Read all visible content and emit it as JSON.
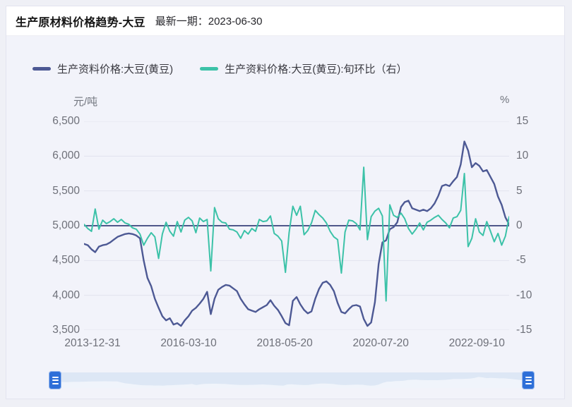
{
  "header": {
    "title": "生产原材料价格趋势-大豆",
    "latest_label": "最新一期：",
    "latest_date": "2023-06-30"
  },
  "legend": [
    {
      "label": "生产资料价格:大豆(黄豆)",
      "color": "#4d5994"
    },
    {
      "label": "生产资料价格:大豆(黄豆):旬环比（右）",
      "color": "#3cc2a8"
    }
  ],
  "colors": {
    "price_line": "#4d5994",
    "pct_line": "#3cc2a8",
    "zero_line": "#4f578a",
    "grid_line": "#e2e3ee",
    "slider_handle": "#2e6fd8",
    "slider_track": "#dde7f5"
  },
  "chart_data": {
    "type": "line",
    "title": "生产原材料价格趋势-大豆",
    "left_axis": {
      "unit": "元/吨",
      "min": 3500,
      "max": 6500,
      "ticks": [
        "6,500",
        "6,000",
        "5,500",
        "5,000",
        "4,500",
        "4,000",
        "3,500"
      ]
    },
    "right_axis": {
      "unit": "%",
      "min": -15,
      "max": 15,
      "ticks": [
        "15",
        "10",
        "5",
        "0",
        "-5",
        "-10",
        "-15"
      ]
    },
    "x_ticks": {
      "labels": [
        "2013-12-31",
        "2016-03-10",
        "2018-05-20",
        "2020-07-20",
        "2022-09-10"
      ],
      "positions": [
        0.02,
        0.246,
        0.472,
        0.698,
        0.924
      ]
    },
    "grid": true,
    "legend_position": "top",
    "zero_reference_left_value": 5000,
    "categories": [
      "2013-12",
      "2014-01",
      "2014-02",
      "2014-03",
      "2014-04",
      "2014-05",
      "2014-06",
      "2014-07",
      "2014-08",
      "2014-09",
      "2014-10",
      "2014-11",
      "2014-12",
      "2015-01",
      "2015-02",
      "2015-03",
      "2015-04",
      "2015-05",
      "2015-06",
      "2015-07",
      "2015-08",
      "2015-09",
      "2015-10",
      "2015-11",
      "2015-12",
      "2016-01",
      "2016-02",
      "2016-03",
      "2016-04",
      "2016-05",
      "2016-06",
      "2016-07",
      "2016-08",
      "2016-09",
      "2016-10",
      "2016-11",
      "2016-12",
      "2017-01",
      "2017-02",
      "2017-03",
      "2017-04",
      "2017-05",
      "2017-06",
      "2017-07",
      "2017-08",
      "2017-09",
      "2017-10",
      "2017-11",
      "2017-12",
      "2018-01",
      "2018-02",
      "2018-03",
      "2018-04",
      "2018-05",
      "2018-06",
      "2018-07",
      "2018-08",
      "2018-09",
      "2018-10",
      "2018-11",
      "2018-12",
      "2019-01",
      "2019-02",
      "2019-03",
      "2019-04",
      "2019-05",
      "2019-06",
      "2019-07",
      "2019-08",
      "2019-09",
      "2019-10",
      "2019-11",
      "2019-12",
      "2020-01",
      "2020-02",
      "2020-03",
      "2020-04",
      "2020-05",
      "2020-06",
      "2020-07",
      "2020-08",
      "2020-09",
      "2020-10",
      "2020-11",
      "2020-12",
      "2021-01",
      "2021-02",
      "2021-03",
      "2021-04",
      "2021-05",
      "2021-06",
      "2021-07",
      "2021-08",
      "2021-09",
      "2021-10",
      "2021-11",
      "2021-12",
      "2022-01",
      "2022-02",
      "2022-03",
      "2022-04",
      "2022-05",
      "2022-06",
      "2022-07",
      "2022-08",
      "2022-09",
      "2022-10",
      "2022-11",
      "2022-12",
      "2023-01",
      "2023-02",
      "2023-03",
      "2023-04",
      "2023-05",
      "2023-06"
    ],
    "series": [
      {
        "name": "生产资料价格:大豆(黄豆)",
        "axis": "left",
        "unit": "元/吨",
        "values": [
          4740,
          4720,
          4660,
          4620,
          4700,
          4720,
          4730,
          4760,
          4800,
          4840,
          4860,
          4880,
          4890,
          4880,
          4860,
          4820,
          4500,
          4250,
          4130,
          3950,
          3820,
          3700,
          3640,
          3670,
          3580,
          3600,
          3560,
          3640,
          3700,
          3780,
          3820,
          3880,
          3950,
          4050,
          3730,
          3950,
          4080,
          4120,
          4150,
          4140,
          4100,
          4060,
          3950,
          3870,
          3800,
          3780,
          3760,
          3800,
          3830,
          3860,
          3930,
          3850,
          3790,
          3700,
          3600,
          3570,
          3920,
          3975,
          3870,
          3790,
          3740,
          3770,
          3950,
          4090,
          4180,
          4200,
          4150,
          4060,
          3890,
          3760,
          3740,
          3800,
          3850,
          3860,
          3840,
          3660,
          3560,
          3610,
          3900,
          4450,
          4760,
          4790,
          4950,
          4980,
          5050,
          5270,
          5340,
          5360,
          5250,
          5230,
          5210,
          5230,
          5210,
          5250,
          5320,
          5430,
          5570,
          5590,
          5570,
          5640,
          5700,
          5880,
          6210,
          6080,
          5840,
          5900,
          5860,
          5780,
          5800,
          5700,
          5600,
          5420,
          5300,
          5120,
          5020
        ]
      },
      {
        "name": "生产资料价格:大豆(黄豆):旬环比（右）",
        "axis": "right",
        "unit": "%",
        "values": [
          0.2,
          -0.4,
          -0.8,
          2.4,
          -0.5,
          0.8,
          0.3,
          0.6,
          1.0,
          0.5,
          0.9,
          0.4,
          0.2,
          -0.3,
          -0.5,
          -1.2,
          -2.8,
          -1.8,
          -1.0,
          -1.6,
          -4.7,
          -1.2,
          0.5,
          -0.8,
          -1.5,
          0.6,
          -0.9,
          0.8,
          1.2,
          0.7,
          -1.0,
          1.1,
          0.6,
          0.9,
          -6.5,
          2.6,
          1.0,
          0.5,
          0.4,
          -0.5,
          -0.6,
          -0.9,
          -1.8,
          -0.7,
          -1.2,
          -0.4,
          -0.8,
          0.9,
          0.6,
          0.7,
          1.4,
          -1.1,
          -1.5,
          -2.2,
          -6.7,
          -1.0,
          2.8,
          1.5,
          2.8,
          -1.3,
          -0.7,
          0.4,
          2.2,
          1.6,
          1.1,
          0.4,
          -0.8,
          -1.6,
          -2.0,
          -6.8,
          -0.9,
          0.8,
          0.7,
          0.3,
          -0.6,
          8.4,
          -2.0,
          1.3,
          2.1,
          2.5,
          1.4,
          -10.8,
          3.0,
          1.5,
          1.2,
          1.8,
          1.0,
          -0.4,
          -1.2,
          -0.5,
          0.4,
          -0.6,
          0.5,
          0.8,
          1.2,
          1.5,
          0.9,
          0.4,
          -0.3,
          1.1,
          1.3,
          2.2,
          7.5,
          -3.0,
          -1.8,
          1.0,
          -0.9,
          -1.4,
          0.6,
          -0.8,
          -2.3,
          -1.1,
          -2.8,
          -1.5,
          1.3
        ]
      }
    ]
  },
  "slider": {
    "handle_icon": "grip-lines"
  }
}
